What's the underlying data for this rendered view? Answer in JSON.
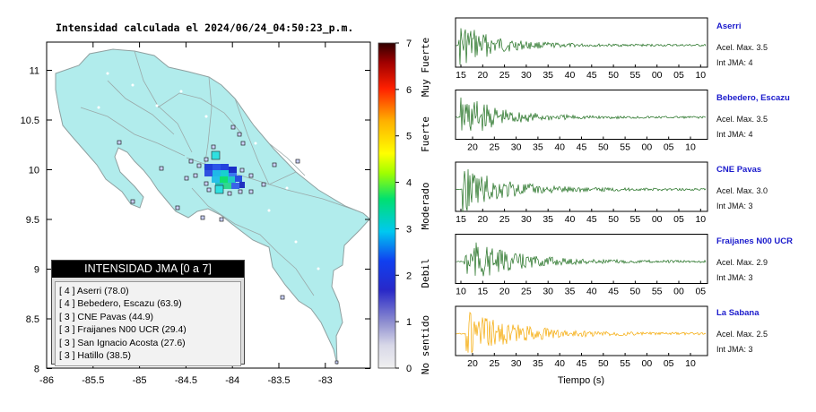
{
  "map": {
    "title": "Intensidad calculada el 2024/06/24_04:50:23_p.m.",
    "x_ticks": [
      "-86",
      "-85.5",
      "-85",
      "-84.5",
      "-84",
      "-83.5",
      "-83"
    ],
    "y_ticks": [
      "11",
      "10.5",
      "10",
      "9.5",
      "9",
      "8.5",
      "8"
    ],
    "land_color": "#b1ecec",
    "border_color": "#8fa0a0"
  },
  "legend": {
    "title": "INTENSIDAD JMA [0 a 7]",
    "items": [
      {
        "text": "[ 4 ] Aserri (78.0)"
      },
      {
        "text": "[ 4 ] Bebedero, Escazu (63.9)"
      },
      {
        "text": "[ 3 ] CNE Pavas (44.9)"
      },
      {
        "text": "[ 3 ] Fraijanes N00 UCR (29.4)"
      },
      {
        "text": "[ 3 ] San Ignacio Acosta (27.6)"
      },
      {
        "text": "[ 3 ] Hatillo (38.5)"
      }
    ]
  },
  "colorbar": {
    "ticks": [
      "0",
      "1",
      "2",
      "3",
      "4",
      "5",
      "6",
      "7"
    ],
    "labels": [
      "No sentido",
      "Debil",
      "Moderado",
      "Fuerte",
      "Muy Fuerte"
    ]
  },
  "waveforms": {
    "xlabel": "Tiempo (s)",
    "panels": [
      {
        "station": "Aserri",
        "accel": "Acel. Max. 3.5",
        "intensity": "Int JMA: 4",
        "color": "#1e6e1e",
        "ticks": [
          "15",
          "20",
          "25",
          "30",
          "35",
          "40",
          "45",
          "50",
          "55",
          "00",
          "05",
          "10"
        ]
      },
      {
        "station": "Bebedero, Escazu",
        "accel": "Acel. Max. 3.5",
        "intensity": "Int JMA: 4",
        "color": "#1e6e1e",
        "ticks": [
          "20",
          "25",
          "30",
          "35",
          "40",
          "45",
          "50",
          "55",
          "00",
          "05",
          "10",
          "15"
        ]
      },
      {
        "station": "CNE Pavas",
        "accel": "Acel. Max. 3.0",
        "intensity": "Int JMA: 3",
        "color": "#1e6e1e",
        "ticks": [
          "15",
          "20",
          "25",
          "30",
          "35",
          "40",
          "45",
          "50",
          "55",
          "00",
          "05",
          "10"
        ]
      },
      {
        "station": "Fraijanes N00 UCR",
        "accel": "Acel. Max. 2.9",
        "intensity": "Int JMA: 3",
        "color": "#1e6e1e",
        "ticks": [
          "10",
          "15",
          "20",
          "25",
          "30",
          "35",
          "40",
          "45",
          "50",
          "55",
          "00",
          "05"
        ]
      },
      {
        "station": "La Sabana",
        "accel": "Acel. Max. 2.5",
        "intensity": "Int JMA: 3",
        "color": "#f5a800",
        "ticks": [
          "20",
          "25",
          "30",
          "35",
          "40",
          "45",
          "50",
          "55",
          "00",
          "05",
          "10",
          "15"
        ]
      }
    ]
  },
  "chart_data": [
    {
      "type": "heatmap",
      "title": "Intensidad calculada el 2024/06/24_04:50:23_p.m.",
      "xlim": [
        -86,
        -82.6
      ],
      "ylim": [
        8,
        11.3
      ],
      "colorbar_range": [
        0,
        7
      ],
      "legend_placement": "bottom-left",
      "stations": [
        {
          "name": "Aserri",
          "intensity": 4,
          "value": 78.0
        },
        {
          "name": "Bebedero, Escazu",
          "intensity": 4,
          "value": 63.9
        },
        {
          "name": "CNE Pavas",
          "intensity": 3,
          "value": 44.9
        },
        {
          "name": "Fraijanes N00 UCR",
          "intensity": 3,
          "value": 29.4
        },
        {
          "name": "San Ignacio Acosta",
          "intensity": 3,
          "value": 27.6
        },
        {
          "name": "Hatillo",
          "intensity": 3,
          "value": 38.5
        }
      ]
    },
    {
      "type": "line",
      "xlabel": "Tiempo (s)",
      "series": [
        {
          "name": "Aserri",
          "peak": 3.5
        },
        {
          "name": "Bebedero, Escazu",
          "peak": 3.5
        },
        {
          "name": "CNE Pavas",
          "peak": 3.0
        },
        {
          "name": "Fraijanes N00 UCR",
          "peak": 2.9
        },
        {
          "name": "La Sabana",
          "peak": 2.5
        }
      ]
    }
  ]
}
